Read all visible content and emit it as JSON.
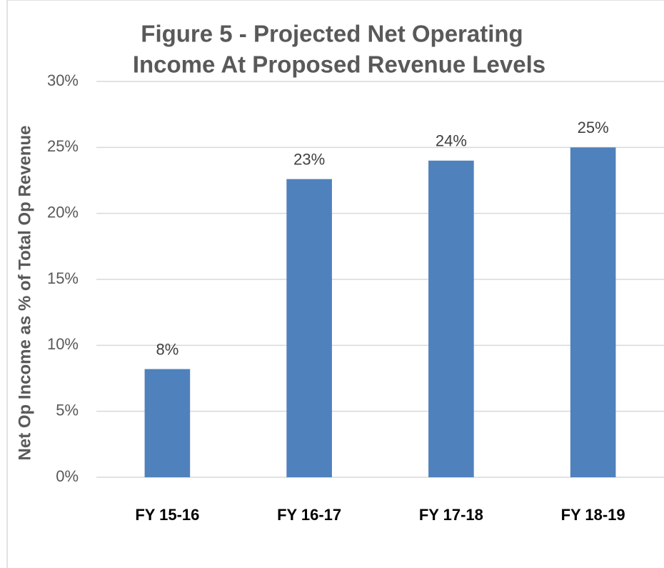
{
  "chart_data": {
    "type": "bar",
    "title": [
      "Figure 5 - Projected Net Operating",
      "Income At Proposed Revenue Levels"
    ],
    "y_label": "Net Op Income as % of Total Op Revenue",
    "categories": [
      "FY 15-16",
      "FY 16-17",
      "FY 17-18",
      "FY 18-19"
    ],
    "values": [
      8.2,
      22.6,
      24.0,
      25.0
    ],
    "value_labels": [
      "8%",
      "23%",
      "24%",
      "25%"
    ],
    "color": "#4f81bd",
    "ylim": [
      0,
      30
    ],
    "yticks": [
      {
        "value": 0,
        "label": "0%"
      },
      {
        "value": 5,
        "label": "5%"
      },
      {
        "value": 10,
        "label": "10%"
      },
      {
        "value": 15,
        "label": "15%"
      },
      {
        "value": 20,
        "label": "20%"
      },
      {
        "value": 25,
        "label": "25%"
      },
      {
        "value": 30,
        "label": "30%"
      }
    ],
    "grid": true
  }
}
